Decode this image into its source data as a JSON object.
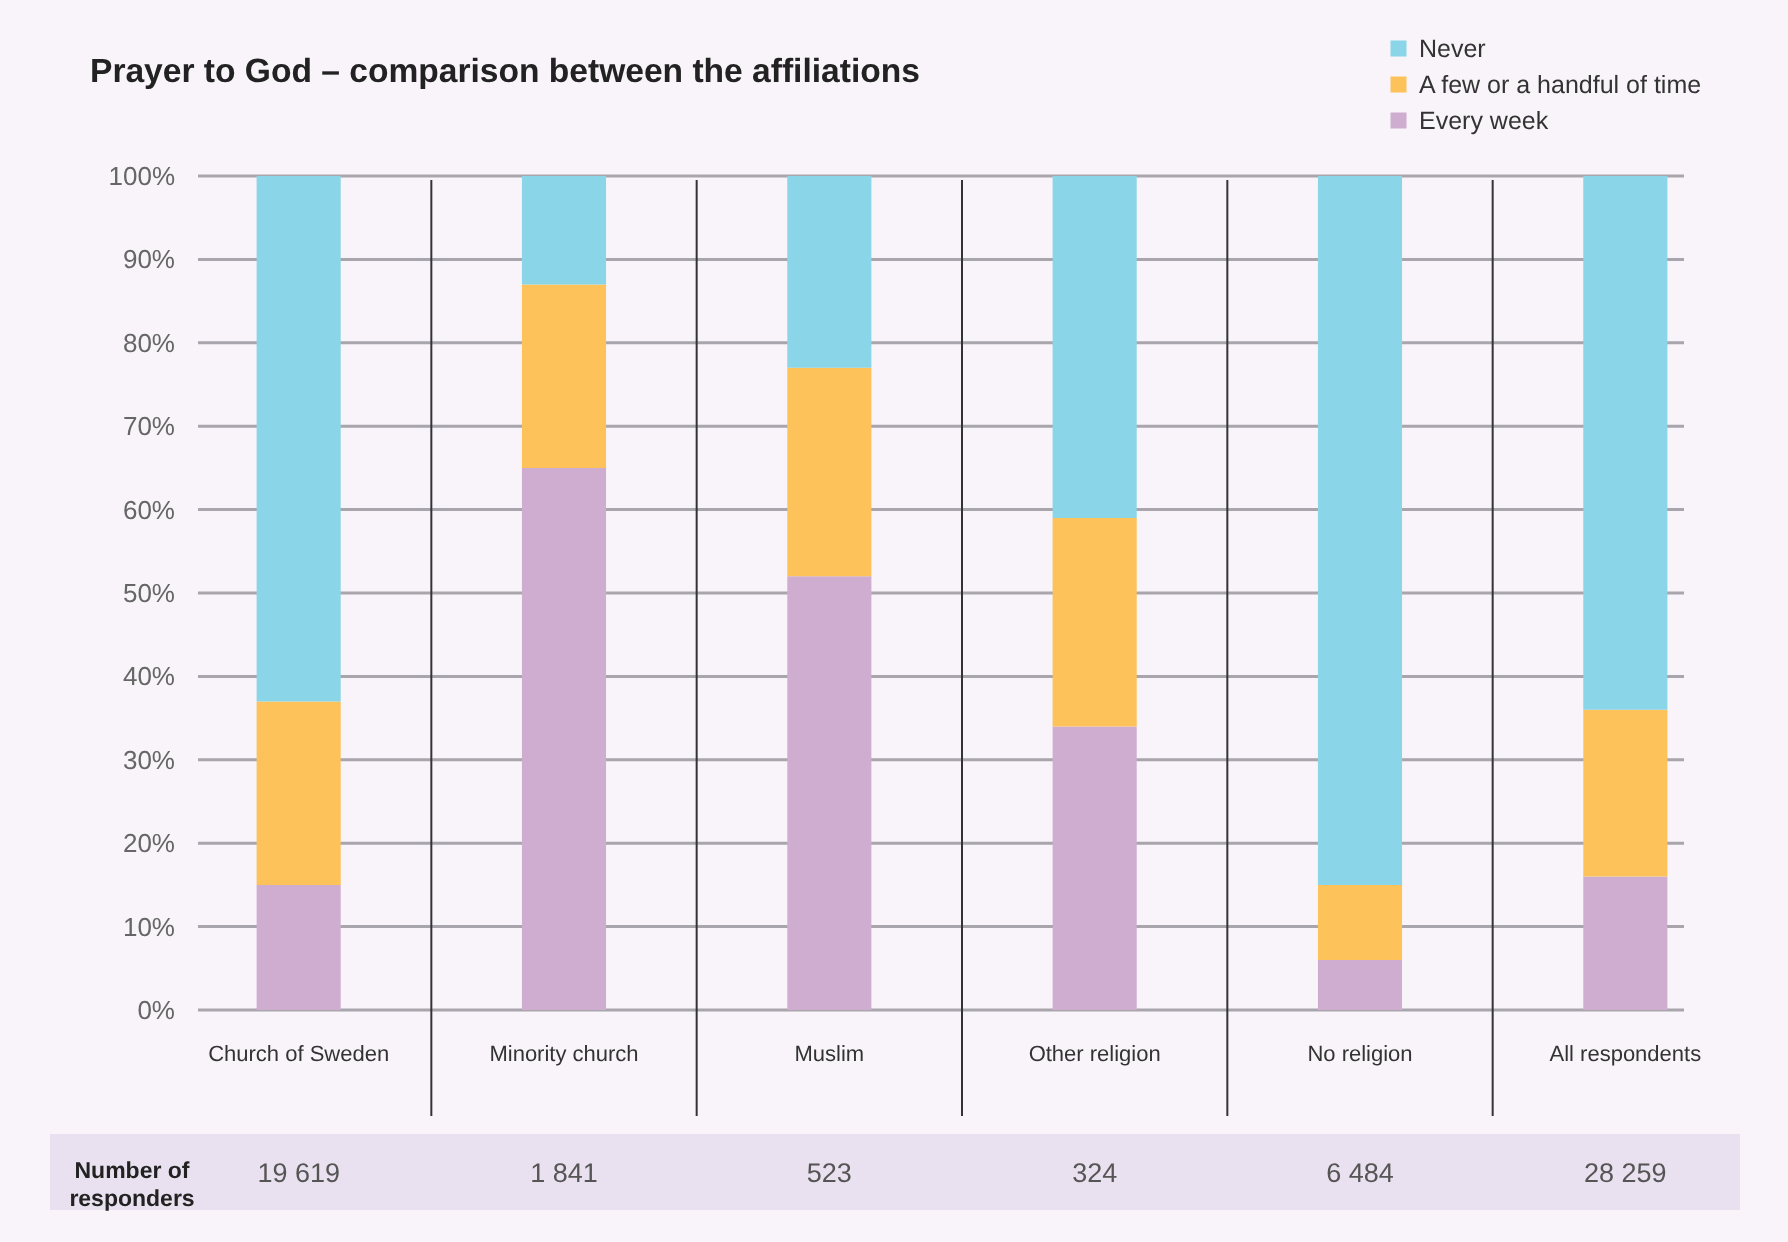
{
  "chart_data": {
    "type": "bar",
    "title": "Prayer to God – comparison between the affiliations",
    "categories": [
      "Church of Sweden",
      "Minority church",
      "Muslim",
      "Other religion",
      "No religion",
      "All respondents"
    ],
    "stacked": true,
    "series": [
      {
        "name": "Every week",
        "color": "#cfadd0",
        "values": [
          15,
          65,
          52,
          34,
          6,
          16
        ]
      },
      {
        "name": "A few or a handful of time",
        "color": "#fdc35a",
        "values": [
          22,
          22,
          25,
          25,
          9,
          20
        ]
      },
      {
        "name": "Never",
        "color": "#8bd5e8",
        "values": [
          63,
          13,
          23,
          41,
          85,
          64
        ]
      }
    ],
    "ylim": [
      0,
      100
    ],
    "yticks": [
      {
        "value": 0,
        "label": "0%"
      },
      {
        "value": 10,
        "label": "10%"
      },
      {
        "value": 20,
        "label": "20%"
      },
      {
        "value": 30,
        "label": "30%"
      },
      {
        "value": 40,
        "label": "40%"
      },
      {
        "value": 50,
        "label": "50%"
      },
      {
        "value": 60,
        "label": "60%"
      },
      {
        "value": 70,
        "label": "70%"
      },
      {
        "value": 80,
        "label": "80%"
      },
      {
        "value": 90,
        "label": "90%"
      },
      {
        "value": 100,
        "label": "100%"
      }
    ],
    "grid": true,
    "legend": "top right",
    "annotations": [
      "Number of responders",
      "19 619",
      "1 841",
      "523",
      "324",
      "6 484",
      "28 259"
    ]
  }
}
